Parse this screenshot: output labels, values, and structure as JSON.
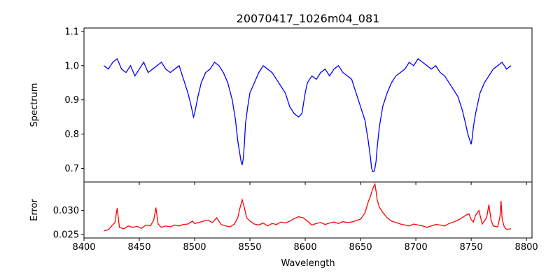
{
  "figure": {
    "title": "20070417_1026m04_081"
  },
  "chart_data": [
    {
      "type": "line",
      "title": "20070417_1026m04_081",
      "xlabel": "",
      "ylabel": "Spectrum",
      "xlim": [
        8400,
        8805
      ],
      "ylim": [
        0.66,
        1.11
      ],
      "xticks": [
        8400,
        8450,
        8500,
        8550,
        8600,
        8650,
        8700,
        8750,
        8800
      ],
      "xtick_labels_shown": false,
      "yticks": [
        0.7,
        0.8,
        0.9,
        1.0,
        1.1
      ],
      "ytick_labels": [
        "0.7",
        "0.8",
        "0.9",
        "1.0",
        "1.1"
      ],
      "grid": false,
      "series": [
        {
          "color": "#0000ff",
          "x": [
            8418,
            8422,
            8426,
            8430,
            8434,
            8438,
            8442,
            8446,
            8450,
            8454,
            8458,
            8462,
            8466,
            8470,
            8474,
            8478,
            8482,
            8486,
            8490,
            8494,
            8497,
            8499,
            8500,
            8503,
            8506,
            8510,
            8514,
            8518,
            8522,
            8526,
            8530,
            8534,
            8537,
            8539,
            8541,
            8542,
            8543,
            8544,
            8545,
            8546,
            8548,
            8550,
            8554,
            8558,
            8562,
            8566,
            8570,
            8574,
            8578,
            8582,
            8586,
            8590,
            8594,
            8597,
            8598,
            8600,
            8602,
            8606,
            8610,
            8614,
            8618,
            8622,
            8626,
            8630,
            8634,
            8638,
            8642,
            8646,
            8650,
            8654,
            8657,
            8659,
            8660,
            8661,
            8662,
            8663,
            8664,
            8665,
            8667,
            8670,
            8674,
            8678,
            8682,
            8686,
            8690,
            8694,
            8698,
            8702,
            8706,
            8710,
            8714,
            8718,
            8722,
            8726,
            8730,
            8734,
            8738,
            8742,
            8745,
            8747,
            8749,
            8750,
            8751,
            8752,
            8754,
            8758,
            8762,
            8766,
            8770,
            8774,
            8778,
            8782,
            8786
          ],
          "y": [
            1.0,
            0.99,
            1.01,
            1.02,
            0.99,
            0.98,
            1.0,
            0.97,
            0.99,
            1.01,
            0.98,
            0.99,
            1.0,
            1.01,
            0.99,
            0.98,
            0.99,
            1.0,
            0.96,
            0.92,
            0.88,
            0.85,
            0.86,
            0.91,
            0.95,
            0.98,
            0.99,
            1.01,
            1.0,
            0.98,
            0.95,
            0.9,
            0.84,
            0.78,
            0.74,
            0.72,
            0.71,
            0.73,
            0.77,
            0.83,
            0.88,
            0.92,
            0.95,
            0.98,
            1.0,
            0.99,
            0.98,
            0.96,
            0.94,
            0.92,
            0.88,
            0.86,
            0.85,
            0.86,
            0.88,
            0.92,
            0.95,
            0.97,
            0.96,
            0.98,
            0.99,
            0.97,
            0.99,
            1.0,
            0.98,
            0.97,
            0.96,
            0.92,
            0.88,
            0.84,
            0.78,
            0.73,
            0.7,
            0.69,
            0.69,
            0.7,
            0.72,
            0.76,
            0.82,
            0.88,
            0.92,
            0.95,
            0.97,
            0.98,
            0.99,
            1.01,
            1.0,
            1.02,
            1.01,
            1.0,
            0.99,
            1.0,
            0.98,
            0.97,
            0.95,
            0.93,
            0.91,
            0.87,
            0.83,
            0.8,
            0.78,
            0.77,
            0.79,
            0.82,
            0.86,
            0.92,
            0.95,
            0.97,
            0.99,
            1.0,
            1.01,
            0.99,
            1.0
          ]
        }
      ]
    },
    {
      "type": "line",
      "title": "",
      "xlabel": "Wavelength",
      "ylabel": "Error",
      "xlim": [
        8400,
        8805
      ],
      "ylim": [
        0.0243,
        0.0359
      ],
      "xticks": [
        8400,
        8450,
        8500,
        8550,
        8600,
        8650,
        8700,
        8750,
        8800
      ],
      "xtick_labels": [
        "8400",
        "8450",
        "8500",
        "8550",
        "8600",
        "8650",
        "8700",
        "8750",
        "8800"
      ],
      "yticks": [
        0.025,
        0.03
      ],
      "ytick_labels": [
        "0.025",
        "0.030"
      ],
      "grid": false,
      "series": [
        {
          "color": "#ff0000",
          "x": [
            8418,
            8422,
            8425,
            8428,
            8430,
            8432,
            8436,
            8440,
            8444,
            8448,
            8452,
            8456,
            8460,
            8463,
            8465,
            8467,
            8470,
            8474,
            8478,
            8482,
            8486,
            8490,
            8494,
            8498,
            8500,
            8504,
            8508,
            8512,
            8516,
            8520,
            8524,
            8528,
            8532,
            8536,
            8539,
            8541,
            8543,
            8545,
            8547,
            8550,
            8554,
            8558,
            8562,
            8566,
            8570,
            8574,
            8578,
            8582,
            8586,
            8590,
            8594,
            8598,
            8602,
            8606,
            8610,
            8614,
            8618,
            8622,
            8626,
            8630,
            8634,
            8638,
            8642,
            8646,
            8650,
            8654,
            8657,
            8659,
            8661,
            8663,
            8664,
            8665,
            8667,
            8670,
            8674,
            8678,
            8682,
            8686,
            8690,
            8694,
            8698,
            8702,
            8706,
            8710,
            8714,
            8718,
            8722,
            8726,
            8730,
            8734,
            8738,
            8742,
            8745,
            8748,
            8750,
            8752,
            8754,
            8757,
            8760,
            8764,
            8766,
            8768,
            8770,
            8774,
            8776,
            8777,
            8778,
            8780,
            8782,
            8786
          ],
          "y": [
            0.0258,
            0.026,
            0.0268,
            0.0275,
            0.0305,
            0.0265,
            0.0262,
            0.0268,
            0.0265,
            0.0267,
            0.0263,
            0.027,
            0.0268,
            0.028,
            0.0306,
            0.0272,
            0.0265,
            0.0268,
            0.0266,
            0.027,
            0.0268,
            0.0271,
            0.0272,
            0.0278,
            0.0273,
            0.0275,
            0.0278,
            0.028,
            0.0275,
            0.0285,
            0.0271,
            0.0268,
            0.0266,
            0.0272,
            0.0285,
            0.0305,
            0.0322,
            0.0306,
            0.0285,
            0.0278,
            0.0272,
            0.027,
            0.0274,
            0.0268,
            0.0273,
            0.0271,
            0.0276,
            0.0274,
            0.0278,
            0.0283,
            0.0287,
            0.0285,
            0.0278,
            0.027,
            0.0273,
            0.0275,
            0.0271,
            0.0274,
            0.0276,
            0.0273,
            0.0277,
            0.0275,
            0.0276,
            0.0279,
            0.0282,
            0.0295,
            0.0318,
            0.033,
            0.0345,
            0.0355,
            0.034,
            0.0322,
            0.0307,
            0.0296,
            0.0285,
            0.0278,
            0.0275,
            0.0272,
            0.027,
            0.0268,
            0.0272,
            0.027,
            0.0268,
            0.0265,
            0.0268,
            0.0271,
            0.027,
            0.0268,
            0.0273,
            0.0276,
            0.028,
            0.0285,
            0.029,
            0.0293,
            0.0281,
            0.0276,
            0.029,
            0.03,
            0.0272,
            0.0285,
            0.0312,
            0.028,
            0.0268,
            0.0266,
            0.0287,
            0.032,
            0.0283,
            0.0265,
            0.0261,
            0.0262
          ]
        }
      ]
    }
  ]
}
